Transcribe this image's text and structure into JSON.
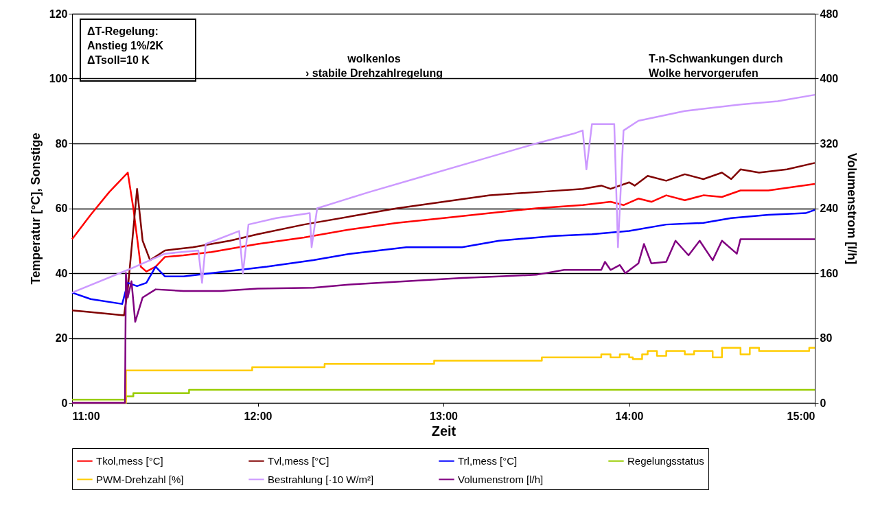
{
  "chart_data": {
    "type": "line",
    "xlabel": "Zeit",
    "ylabel": "Temperatur [°C], Sonstige",
    "y2label": "Volumenstrom [l/h]",
    "xlim": [
      11,
      15
    ],
    "xticks": [
      {
        "value": 11,
        "label": "11:00"
      },
      {
        "value": 12,
        "label": "12:00"
      },
      {
        "value": 13,
        "label": "13:00"
      },
      {
        "value": 14,
        "label": "14:00"
      },
      {
        "value": 15,
        "label": "15:00"
      }
    ],
    "ylim": [
      0,
      120
    ],
    "yticks": [
      0,
      20,
      40,
      60,
      80,
      100,
      120
    ],
    "y2lim": [
      0,
      480
    ],
    "y2ticks": [
      0,
      80,
      160,
      240,
      320,
      400,
      480
    ],
    "grid": "y",
    "legend": "bottom",
    "marker": "none",
    "line_style": "solid",
    "annotations": [
      "ΔT-Regelung:\nAnstieg 1%/2K\nΔTsoll=10 K",
      "wolkenlos\n   › stabile Drehzahlregelung",
      "T-n-Schwankungen durch\nWolke hervorgerufen"
    ],
    "series": [
      {
        "name": "Tkol,mess [°C]",
        "color": "#ff0000",
        "x": [
          11,
          11.1,
          11.2,
          11.3,
          11.33,
          11.37,
          11.4,
          11.45,
          11.5,
          11.6,
          11.75,
          12,
          12.25,
          12.5,
          12.75,
          13,
          13.25,
          13.5,
          13.75,
          13.9,
          13.97,
          14.05,
          14.12,
          14.2,
          14.3,
          14.4,
          14.5,
          14.6,
          14.75,
          15
        ],
        "values": [
          50.5,
          58,
          65,
          71,
          60,
          42,
          40.5,
          42,
          45,
          45.5,
          46.5,
          49,
          51,
          53.5,
          55.5,
          57,
          58.5,
          60,
          61,
          62,
          61,
          63,
          62,
          64,
          62.5,
          64,
          63.5,
          65.5,
          65.5,
          67.5
        ]
      },
      {
        "name": "Tvl,mess [°C]",
        "color": "#800000",
        "x": [
          11,
          11.1,
          11.28,
          11.3,
          11.35,
          11.38,
          11.42,
          11.5,
          11.65,
          11.85,
          12,
          12.25,
          12.5,
          12.75,
          13,
          13.25,
          13.5,
          13.75,
          13.85,
          13.9,
          14,
          14.03,
          14.1,
          14.2,
          14.3,
          14.4,
          14.5,
          14.55,
          14.6,
          14.7,
          14.85,
          15
        ],
        "values": [
          28.5,
          28,
          27,
          35,
          66,
          50,
          44,
          47,
          48,
          50,
          52,
          55,
          57.5,
          60,
          62,
          64,
          65,
          66,
          67,
          66,
          68,
          67,
          70,
          68.5,
          70.5,
          69,
          71,
          69,
          72,
          71,
          72,
          74
        ]
      },
      {
        "name": "Trl,mess [°C]",
        "color": "#0000ff",
        "x": [
          11,
          11.1,
          11.27,
          11.3,
          11.35,
          11.4,
          11.45,
          11.5,
          11.6,
          11.75,
          11.9,
          12.05,
          12.3,
          12.5,
          12.8,
          13.1,
          13.3,
          13.6,
          13.8,
          14,
          14.2,
          14.4,
          14.55,
          14.75,
          14.95,
          15
        ],
        "values": [
          34,
          32,
          30.5,
          37,
          36,
          37,
          42,
          39,
          39,
          40,
          41,
          42,
          44,
          46,
          48,
          48,
          50,
          51.5,
          52,
          53,
          55,
          55.5,
          57,
          58,
          58.5,
          59.5
        ]
      },
      {
        "name": "Regelungsstatus",
        "color": "#99cc00",
        "type": "step",
        "x": [
          11,
          11.29,
          11.33,
          11.63,
          15
        ],
        "values": [
          1,
          2,
          3,
          4,
          4
        ]
      },
      {
        "name": "PWM-Drehzahl [%]",
        "color": "#ffcc00",
        "type": "step",
        "x": [
          11,
          11.29,
          11.97,
          12.36,
          12.95,
          13.53,
          13.85,
          13.9,
          13.95,
          14,
          14.02,
          14.07,
          14.1,
          14.15,
          14.2,
          14.3,
          14.35,
          14.45,
          14.5,
          14.6,
          14.65,
          14.7,
          14.97,
          15
        ],
        "values": [
          0,
          10,
          11,
          12,
          13,
          14,
          15,
          14,
          15,
          14,
          13.5,
          15,
          16,
          14.5,
          16,
          15,
          16,
          14,
          17,
          15,
          17,
          16,
          17,
          17
        ]
      },
      {
        "name": "Bestrahlung [·10 W/m²]",
        "color": "#cc99ff",
        "x": [
          11,
          11.3,
          11.5,
          11.68,
          11.7,
          11.72,
          11.9,
          11.92,
          11.95,
          12.1,
          12.28,
          12.29,
          12.32,
          12.6,
          12.9,
          13.2,
          13.5,
          13.7,
          13.75,
          13.77,
          13.8,
          13.92,
          13.94,
          13.97,
          14.05,
          14.3,
          14.6,
          14.8,
          15
        ],
        "values": [
          34,
          41,
          46,
          47,
          37,
          49,
          53,
          40,
          55,
          57,
          58.5,
          48,
          60,
          65,
          70,
          75,
          80,
          83,
          84,
          72,
          86,
          86,
          48,
          84,
          87,
          90,
          92,
          93,
          95
        ]
      },
      {
        "name": "Volumenstrom [l/h]",
        "color": "#800080",
        "axis": "y2",
        "x": [
          11,
          11.285,
          11.29,
          11.3,
          11.32,
          11.34,
          11.38,
          11.45,
          11.6,
          11.8,
          12,
          12.3,
          12.5,
          12.8,
          13.1,
          13.3,
          13.5,
          13.65,
          13.85,
          13.87,
          13.9,
          13.95,
          13.98,
          14.05,
          14.08,
          14.12,
          14.2,
          14.25,
          14.32,
          14.38,
          14.45,
          14.5,
          14.58,
          14.6,
          15
        ],
        "values": [
          0,
          0,
          160,
          130,
          150,
          100,
          130,
          140,
          138,
          138,
          141,
          142,
          146,
          150,
          154,
          156,
          158,
          164,
          164,
          174,
          164,
          170,
          160,
          172,
          196,
          172,
          174,
          200,
          182,
          200,
          176,
          200,
          184,
          202,
          202
        ]
      }
    ]
  }
}
